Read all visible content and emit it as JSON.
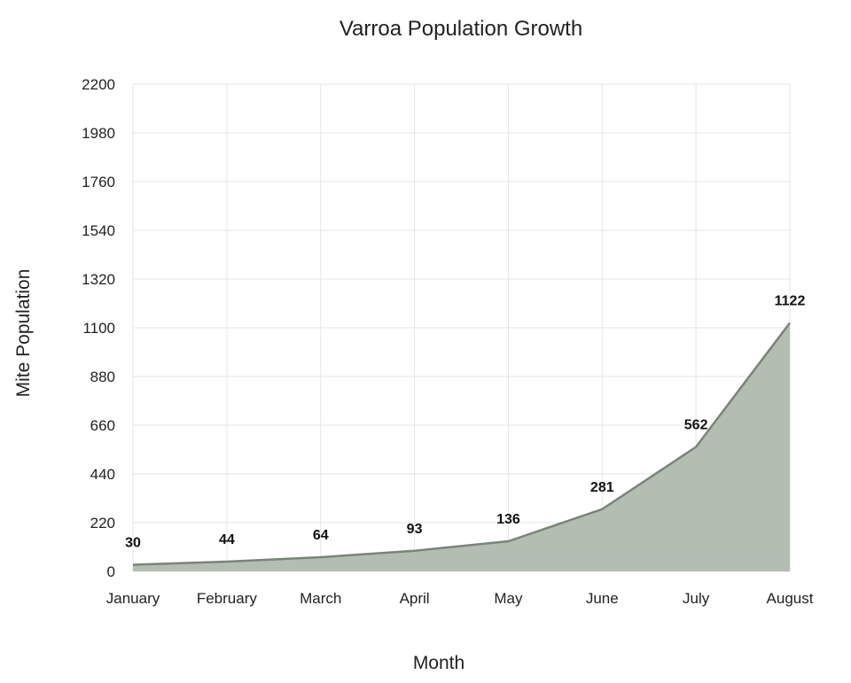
{
  "chart_data": {
    "type": "area",
    "title": "Varroa Population Growth",
    "xlabel": "Month",
    "ylabel": "Mite Population",
    "categories": [
      "January",
      "February",
      "March",
      "April",
      "May",
      "June",
      "July",
      "August"
    ],
    "series": [
      {
        "values": [
          30,
          44,
          64,
          93,
          136,
          281,
          562,
          1122
        ]
      }
    ],
    "ylim": [
      0,
      2200
    ],
    "yticks": [
      "0",
      "220",
      "440",
      "660",
      "880",
      "1100",
      "1320",
      "1540",
      "1760",
      "1980",
      "2200"
    ],
    "data_labels": [
      "30",
      "44",
      "64",
      "93",
      "136",
      "281",
      "562",
      "1122"
    ],
    "grid": true,
    "legend": "none",
    "colors": {
      "area_fill": "#b4bdb2",
      "area_line": "#7a847a"
    }
  }
}
